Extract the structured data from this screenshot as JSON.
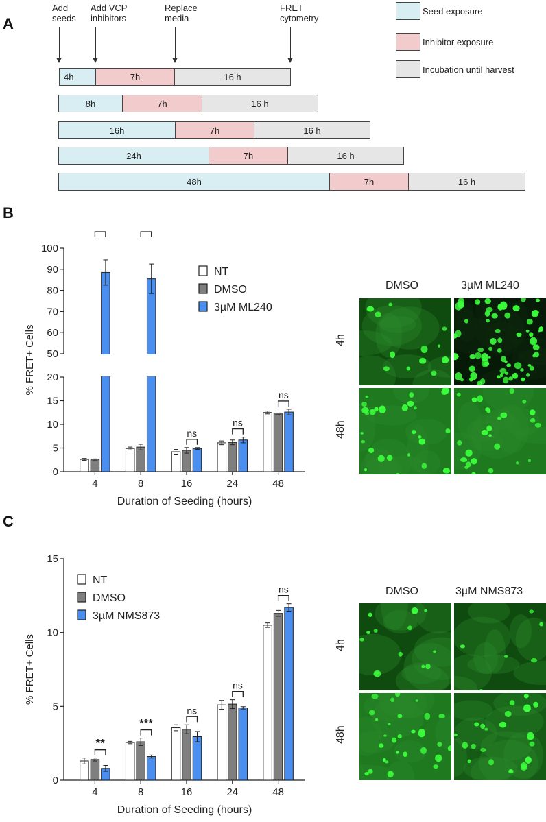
{
  "panel_a": {
    "letter": "A",
    "steps": [
      "Add seeds",
      "Add VCP inhibitors",
      "Replace media",
      "FRET cytometry"
    ],
    "legend": [
      {
        "label": "Seed exposure",
        "color": "#d8eef3"
      },
      {
        "label": "Inhibitor exposure",
        "color": "#f2cccc"
      },
      {
        "label": "Incubation until harvest",
        "color": "#e6e6e6"
      }
    ],
    "rows": [
      {
        "seed": "4h",
        "inhibitor": "7h",
        "incubation": "16 h"
      },
      {
        "seed": "8h",
        "inhibitor": "7h",
        "incubation": "16 h"
      },
      {
        "seed": "16h",
        "inhibitor": "7h",
        "incubation": "16 h"
      },
      {
        "seed": "24h",
        "inhibitor": "7h",
        "incubation": "16 h"
      },
      {
        "seed": "48h",
        "inhibitor": "7h",
        "incubation": "16 h"
      }
    ]
  },
  "panel_b": {
    "letter": "B",
    "image_headers": [
      "DMSO",
      "3µM ML240"
    ],
    "image_rows": [
      "4h",
      "48h"
    ]
  },
  "panel_c": {
    "letter": "C",
    "image_headers": [
      "DMSO",
      "3µM NMS873"
    ],
    "image_rows": [
      "4h",
      "48h"
    ]
  },
  "colors": {
    "nt": "#ffffff",
    "dmso": "#7f7f7f",
    "ml240": "#4a8ff0",
    "nms873": "#4a8ff0",
    "stroke": "#222222"
  },
  "chart_data": [
    {
      "type": "bar",
      "panel": "B",
      "categories": [
        "4",
        "8",
        "16",
        "24",
        "48"
      ],
      "xlabel": "Duration of Seeding (hours)",
      "ylabel": "% FRET+ Cells",
      "axis_break": [
        20,
        50
      ],
      "ylim": [
        0,
        100
      ],
      "yticks": [
        0,
        5,
        10,
        15,
        20,
        50,
        60,
        70,
        80,
        90,
        100
      ],
      "legend_position": "top-center",
      "series": [
        {
          "name": "NT",
          "values": [
            2.6,
            4.9,
            4.2,
            6.1,
            12.5
          ],
          "errors": [
            0.2,
            0.3,
            0.5,
            0.4,
            0.3
          ]
        },
        {
          "name": "DMSO",
          "values": [
            2.5,
            5.2,
            4.5,
            6.2,
            12.2
          ],
          "errors": [
            0.2,
            0.6,
            0.6,
            0.5,
            0.2
          ]
        },
        {
          "name": "3µM ML240",
          "values": [
            88.5,
            85.5,
            4.9,
            6.7,
            12.6
          ],
          "errors": [
            6.0,
            7.0,
            0.2,
            0.6,
            0.6
          ]
        }
      ],
      "significance": [
        {
          "category": "4",
          "label": "****"
        },
        {
          "category": "8",
          "label": "****"
        },
        {
          "category": "16",
          "label": "ns"
        },
        {
          "category": "24",
          "label": "ns"
        },
        {
          "category": "48",
          "label": "ns"
        }
      ]
    },
    {
      "type": "bar",
      "panel": "C",
      "categories": [
        "4",
        "8",
        "16",
        "24",
        "48"
      ],
      "xlabel": "Duration of Seeding (hours)",
      "ylabel": "% FRET+ Cells",
      "ylim": [
        0,
        15
      ],
      "yticks": [
        0,
        5,
        10,
        15
      ],
      "legend_position": "top-left",
      "series": [
        {
          "name": "NT",
          "values": [
            1.3,
            2.55,
            3.55,
            5.1,
            10.5
          ],
          "errors": [
            0.2,
            0.08,
            0.2,
            0.3,
            0.15
          ]
        },
        {
          "name": "DMSO",
          "values": [
            1.4,
            2.6,
            3.45,
            5.15,
            11.3
          ],
          "errors": [
            0.1,
            0.25,
            0.3,
            0.3,
            0.2
          ]
        },
        {
          "name": "3µM NMS873",
          "values": [
            0.8,
            1.6,
            2.95,
            4.9,
            11.7
          ],
          "errors": [
            0.2,
            0.1,
            0.35,
            0.08,
            0.25
          ]
        }
      ],
      "significance": [
        {
          "category": "4",
          "label": "**"
        },
        {
          "category": "8",
          "label": "***"
        },
        {
          "category": "16",
          "label": "ns"
        },
        {
          "category": "24",
          "label": "ns"
        },
        {
          "category": "48",
          "label": "ns"
        }
      ]
    }
  ]
}
